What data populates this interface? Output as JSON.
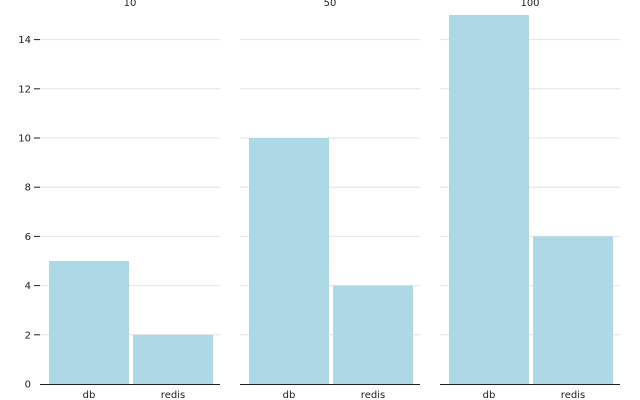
{
  "chart_data": {
    "type": "bar",
    "facets": [
      "10",
      "50",
      "100"
    ],
    "categories": [
      "db",
      "redis"
    ],
    "series": [
      {
        "facet": "10",
        "values": [
          5,
          2
        ]
      },
      {
        "facet": "50",
        "values": [
          10,
          4
        ]
      },
      {
        "facet": "100",
        "values": [
          15,
          6
        ]
      }
    ],
    "y_ticks": [
      0,
      2,
      4,
      6,
      8,
      10,
      12,
      14
    ],
    "ylim": [
      0,
      15
    ],
    "grid": true,
    "bar_color": "#add8e6",
    "title": "",
    "xlabel": "",
    "ylabel": ""
  }
}
